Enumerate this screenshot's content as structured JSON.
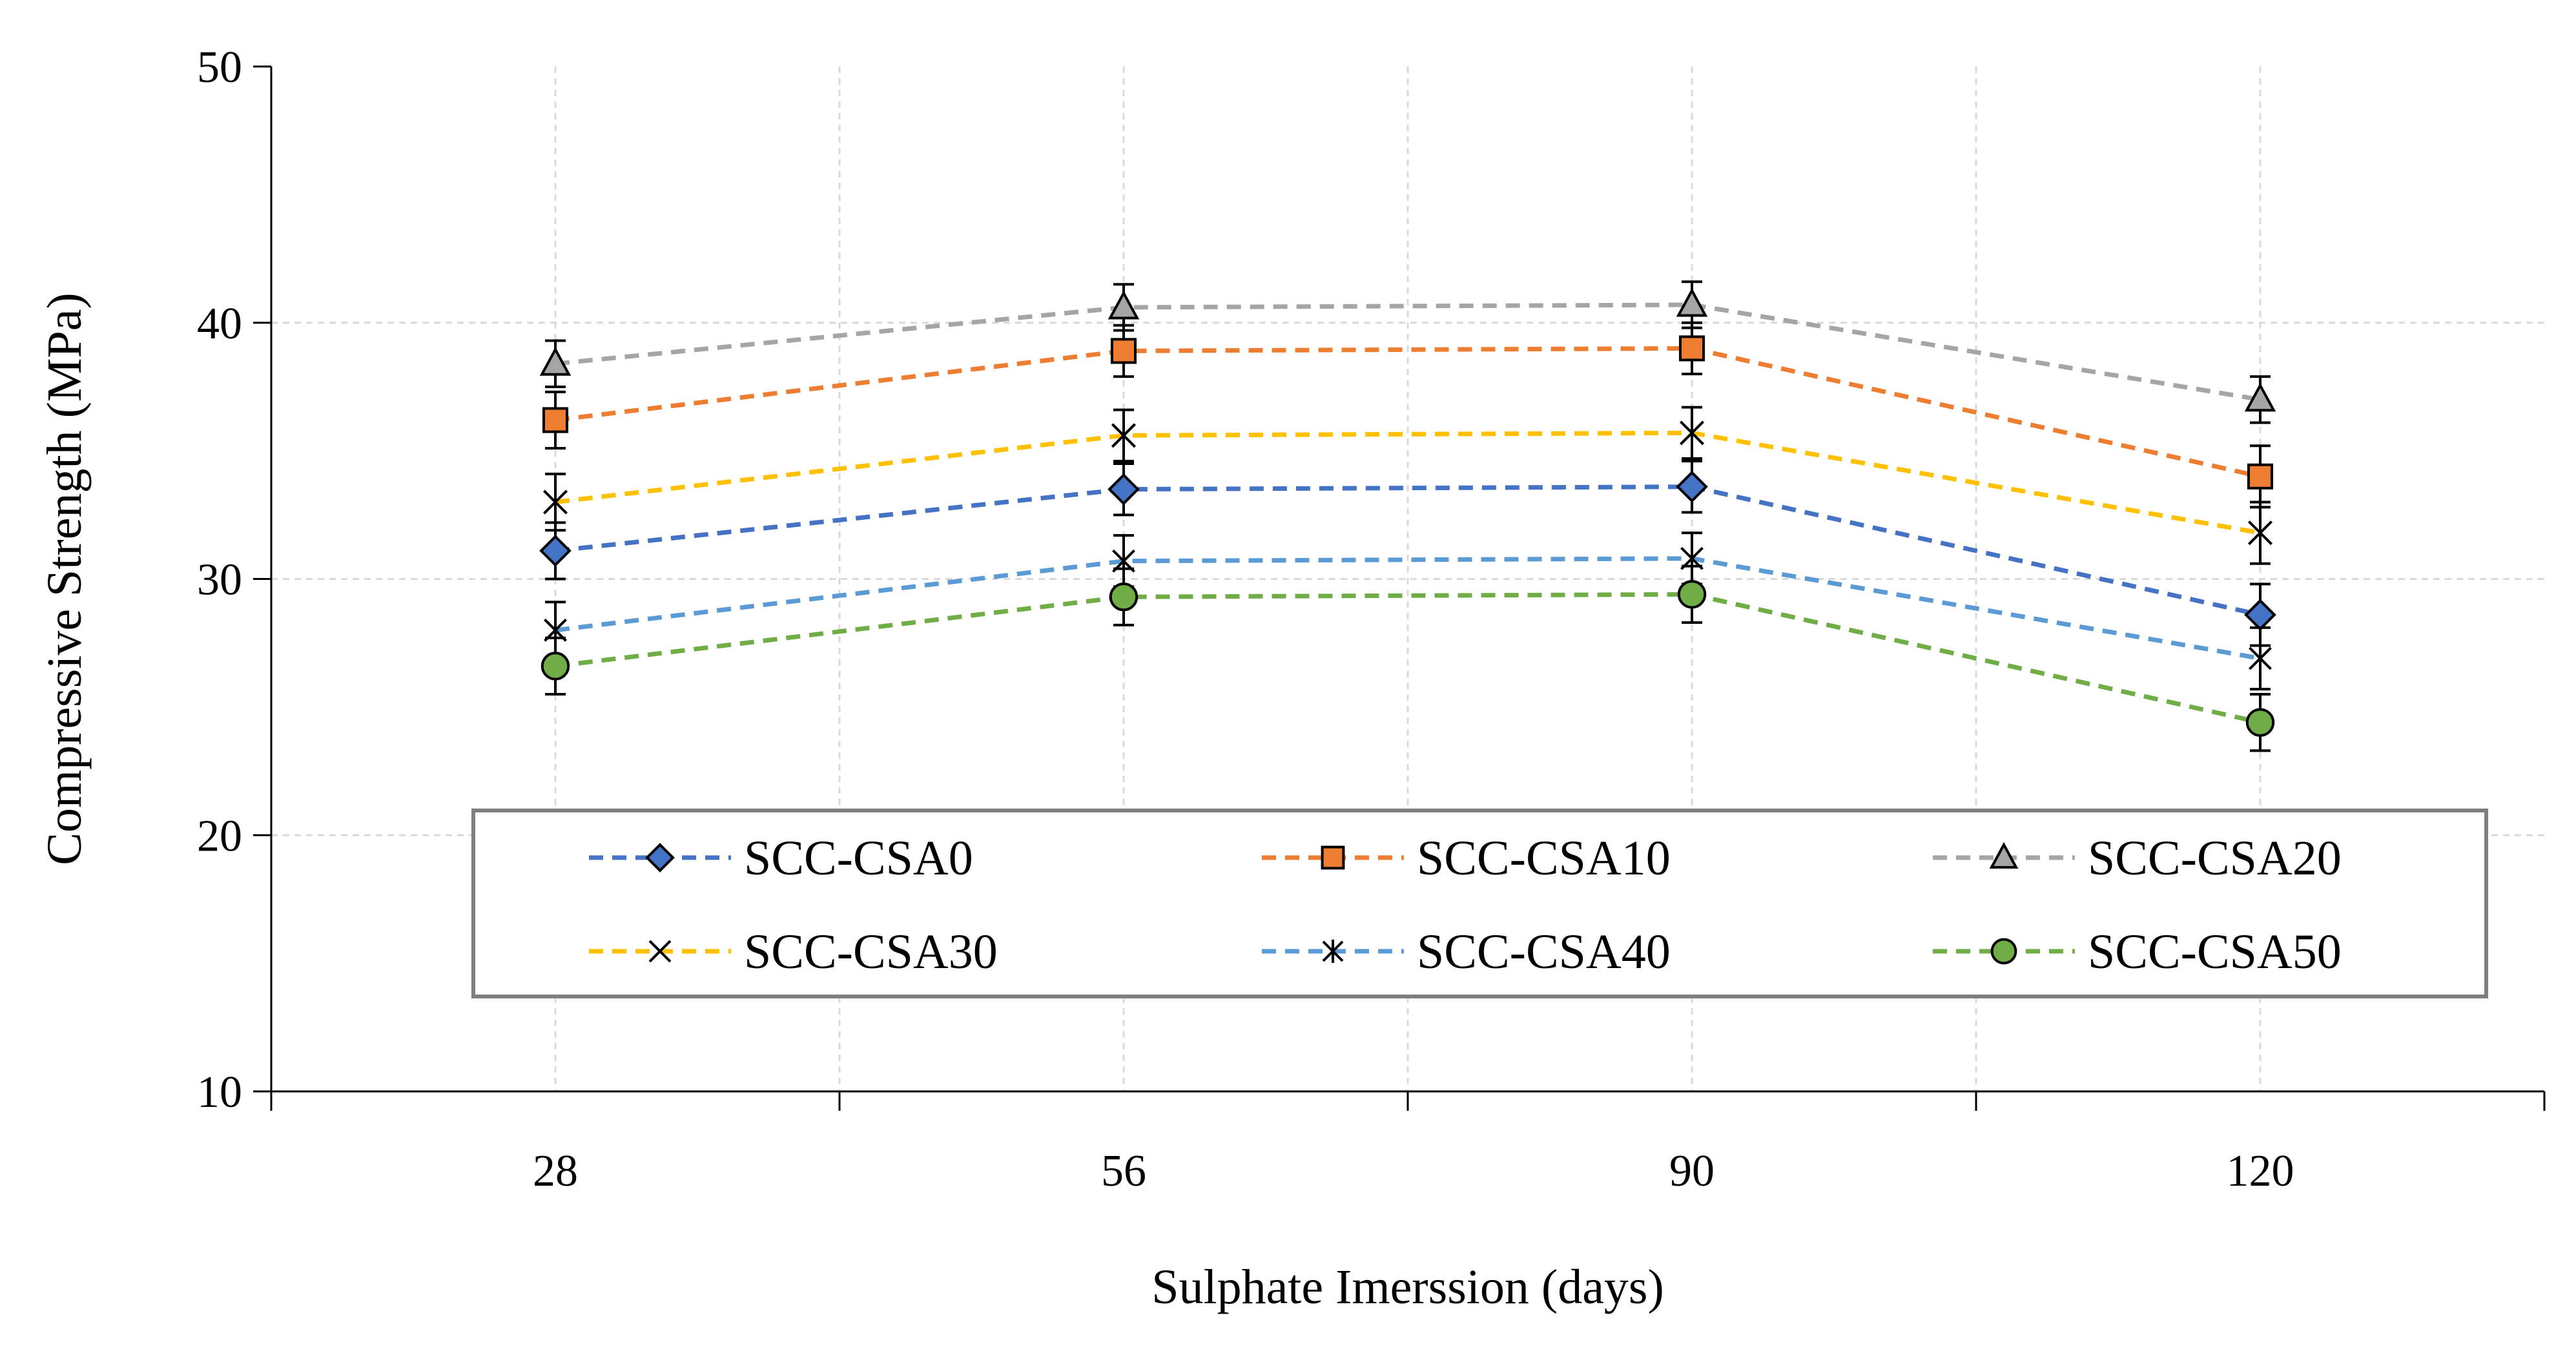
{
  "chart_data": {
    "type": "line",
    "title": "",
    "xlabel": "Sulphate Imerssion (days)",
    "ylabel": "Compressive Strength (MPa)",
    "categories": [
      "28",
      "56",
      "90",
      "120"
    ],
    "ylim": [
      10,
      50
    ],
    "yticks": [
      "10",
      "20",
      "30",
      "40",
      "50"
    ],
    "grid": true,
    "legend_position": "bottom-center",
    "series": [
      {
        "name": "SCC-CSA0",
        "values": [
          31.1,
          33.5,
          33.6,
          28.6
        ],
        "errors": [
          1.1,
          1.0,
          1.0,
          1.2
        ],
        "color": "#4472C4",
        "marker": "diamond"
      },
      {
        "name": "SCC-CSA10",
        "values": [
          36.2,
          38.9,
          39.0,
          34.0
        ],
        "errors": [
          1.1,
          1.0,
          1.0,
          1.2
        ],
        "color": "#ED7D31",
        "marker": "square"
      },
      {
        "name": "SCC-CSA20",
        "values": [
          38.4,
          40.6,
          40.7,
          37.0
        ],
        "errors": [
          0.9,
          0.9,
          0.9,
          0.9
        ],
        "color": "#A5A5A5",
        "marker": "triangle"
      },
      {
        "name": "SCC-CSA30",
        "values": [
          33.0,
          35.6,
          35.7,
          31.8
        ],
        "errors": [
          1.1,
          1.0,
          1.0,
          1.2
        ],
        "color": "#FFC000",
        "marker": "x"
      },
      {
        "name": "SCC-CSA40",
        "values": [
          28.0,
          30.7,
          30.8,
          26.9
        ],
        "errors": [
          1.1,
          1.0,
          1.0,
          1.2
        ],
        "color": "#5B9BD5",
        "marker": "star"
      },
      {
        "name": "SCC-CSA50",
        "values": [
          26.6,
          29.3,
          29.4,
          24.4
        ],
        "errors": [
          1.1,
          1.1,
          1.1,
          1.1
        ],
        "color": "#70AD47",
        "marker": "circle"
      }
    ]
  }
}
